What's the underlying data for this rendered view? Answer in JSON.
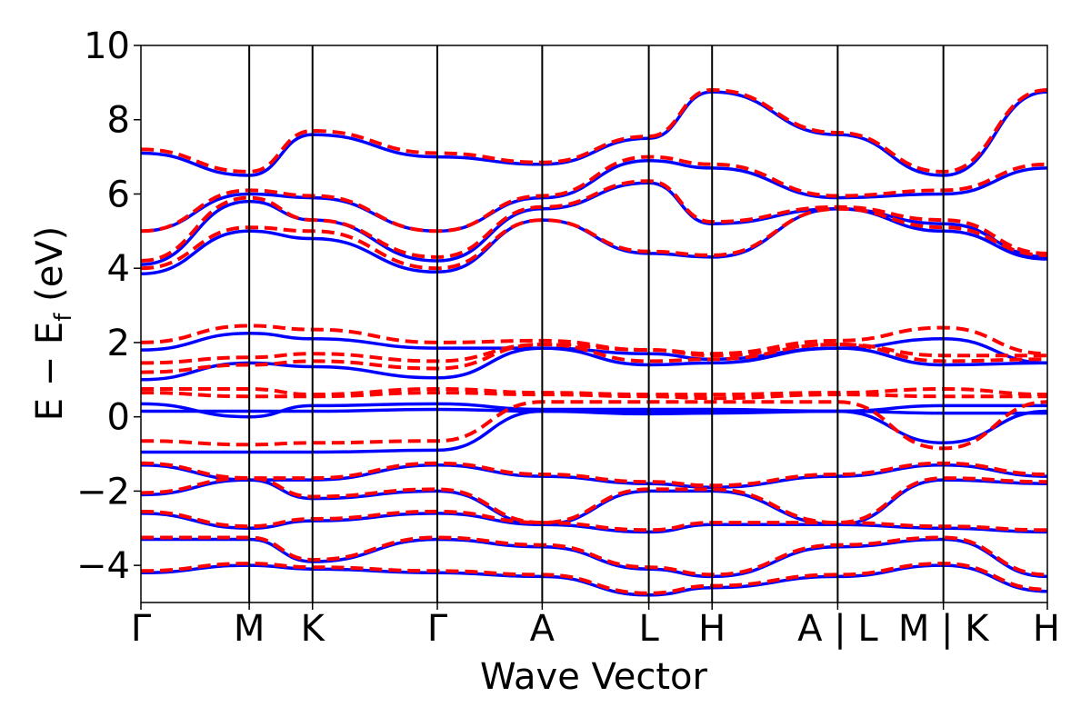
{
  "chart_data": {
    "type": "line",
    "xlabel": "Wave Vector",
    "ylabel_main": "E − E",
    "ylabel_sub": "f",
    "ylabel_unit": " (eV)",
    "ylim": [
      -5,
      10
    ],
    "yticks": [
      -4,
      -2,
      0,
      2,
      4,
      6,
      8,
      10
    ],
    "ytick_labels": [
      "−4",
      "−2",
      "0",
      "2",
      "4",
      "6",
      "8",
      "10"
    ],
    "x_range": [
      0,
      1
    ],
    "kpoints": [
      {
        "label": "Γ",
        "x": 0.0
      },
      {
        "label": "M",
        "x": 0.1195
      },
      {
        "label": "K",
        "x": 0.1893
      },
      {
        "label": "Γ",
        "x": 0.327
      },
      {
        "label": "A",
        "x": 0.4427
      },
      {
        "label": "L",
        "x": 0.5603
      },
      {
        "label": "H",
        "x": 0.6301
      },
      {
        "label": "A | L",
        "x": 0.7687
      },
      {
        "label": "M | K",
        "x": 0.8853
      },
      {
        "label": "H",
        "x": 1.0
      }
    ],
    "series": [
      {
        "style": "solid",
        "color": "#0000ff",
        "bands": [
          [
            -0.95,
            -0.95,
            -0.95,
            -0.9,
            0.15,
            0.15,
            0.15,
            0.15,
            -0.7,
            0.15
          ],
          [
            0.15,
            0.15,
            0.15,
            0.2,
            0.15,
            0.08,
            0.1,
            0.15,
            0.1,
            0.1
          ],
          [
            0.35,
            0.0,
            0.3,
            0.35,
            0.2,
            0.2,
            0.2,
            0.15,
            0.3,
            0.3
          ],
          [
            1.0,
            1.45,
            1.35,
            1.05,
            1.85,
            1.4,
            1.45,
            1.85,
            1.4,
            1.45
          ],
          [
            1.8,
            2.25,
            2.1,
            1.85,
            1.85,
            1.7,
            1.55,
            1.85,
            2.1,
            1.45
          ],
          [
            3.85,
            5.0,
            4.8,
            3.9,
            5.3,
            4.4,
            4.3,
            5.6,
            5.0,
            4.25
          ],
          [
            4.1,
            5.8,
            5.3,
            4.2,
            5.6,
            6.3,
            5.2,
            5.6,
            5.2,
            4.3
          ],
          [
            5.0,
            6.0,
            5.9,
            5.0,
            5.9,
            6.9,
            6.7,
            5.9,
            6.0,
            6.7
          ],
          [
            7.1,
            6.5,
            7.6,
            7.0,
            6.8,
            7.5,
            8.75,
            7.6,
            6.5,
            8.75
          ],
          [
            -1.3,
            -1.7,
            -1.7,
            -1.3,
            -1.6,
            -1.8,
            -1.9,
            -1.6,
            -1.3,
            -1.6
          ],
          [
            -2.1,
            -1.7,
            -2.2,
            -2.0,
            -2.9,
            -2.0,
            -2.0,
            -2.9,
            -1.7,
            -1.8
          ],
          [
            -2.6,
            -3.0,
            -2.8,
            -2.6,
            -2.9,
            -3.1,
            -2.9,
            -2.9,
            -3.0,
            -3.1
          ],
          [
            -3.3,
            -3.3,
            -3.9,
            -3.3,
            -3.5,
            -4.1,
            -4.3,
            -3.5,
            -3.3,
            -4.3
          ],
          [
            -4.2,
            -4.0,
            -4.1,
            -4.2,
            -4.3,
            -4.8,
            -4.6,
            -4.3,
            -4.0,
            -4.7
          ]
        ]
      },
      {
        "style": "dashed",
        "color": "#ff0000",
        "bands": [
          [
            -0.65,
            -0.75,
            -0.7,
            -0.65,
            0.4,
            0.4,
            0.4,
            0.4,
            -0.85,
            0.4
          ],
          [
            0.65,
            0.55,
            0.55,
            0.65,
            0.6,
            0.55,
            0.5,
            0.6,
            0.55,
            0.55
          ],
          [
            0.75,
            0.75,
            0.6,
            0.75,
            0.65,
            0.6,
            0.6,
            0.65,
            0.75,
            0.6
          ],
          [
            1.2,
            1.4,
            1.5,
            1.3,
            1.95,
            1.5,
            1.55,
            1.95,
            1.5,
            1.55
          ],
          [
            1.45,
            1.6,
            1.7,
            1.5,
            1.95,
            1.8,
            1.65,
            1.95,
            1.65,
            1.65
          ],
          [
            2.0,
            2.45,
            2.35,
            2.0,
            2.05,
            1.8,
            1.7,
            2.05,
            2.4,
            1.7
          ],
          [
            4.0,
            5.1,
            5.0,
            4.0,
            5.3,
            4.45,
            4.35,
            5.6,
            5.1,
            4.35
          ],
          [
            4.2,
            5.9,
            5.3,
            4.3,
            5.65,
            6.35,
            5.25,
            5.65,
            5.3,
            4.4
          ],
          [
            5.0,
            6.1,
            5.95,
            5.0,
            5.95,
            7.0,
            6.8,
            5.95,
            6.1,
            6.8
          ],
          [
            7.2,
            6.6,
            7.7,
            7.1,
            6.85,
            7.55,
            8.8,
            7.65,
            6.6,
            8.8
          ],
          [
            -1.25,
            -1.65,
            -1.65,
            -1.25,
            -1.55,
            -1.75,
            -1.85,
            -1.55,
            -1.25,
            -1.55
          ],
          [
            -2.05,
            -1.65,
            -2.15,
            -1.95,
            -2.85,
            -1.95,
            -1.95,
            -2.85,
            -1.65,
            -1.75
          ],
          [
            -2.55,
            -2.95,
            -2.75,
            -2.55,
            -2.85,
            -3.05,
            -2.85,
            -2.85,
            -2.95,
            -3.05
          ],
          [
            -3.25,
            -3.25,
            -3.85,
            -3.25,
            -3.45,
            -4.05,
            -4.25,
            -3.45,
            -3.25,
            -4.25
          ],
          [
            -4.15,
            -3.95,
            -4.05,
            -4.15,
            -4.25,
            -4.75,
            -4.55,
            -4.25,
            -3.95,
            -4.65
          ]
        ]
      }
    ],
    "grid": false,
    "legend": "none"
  }
}
